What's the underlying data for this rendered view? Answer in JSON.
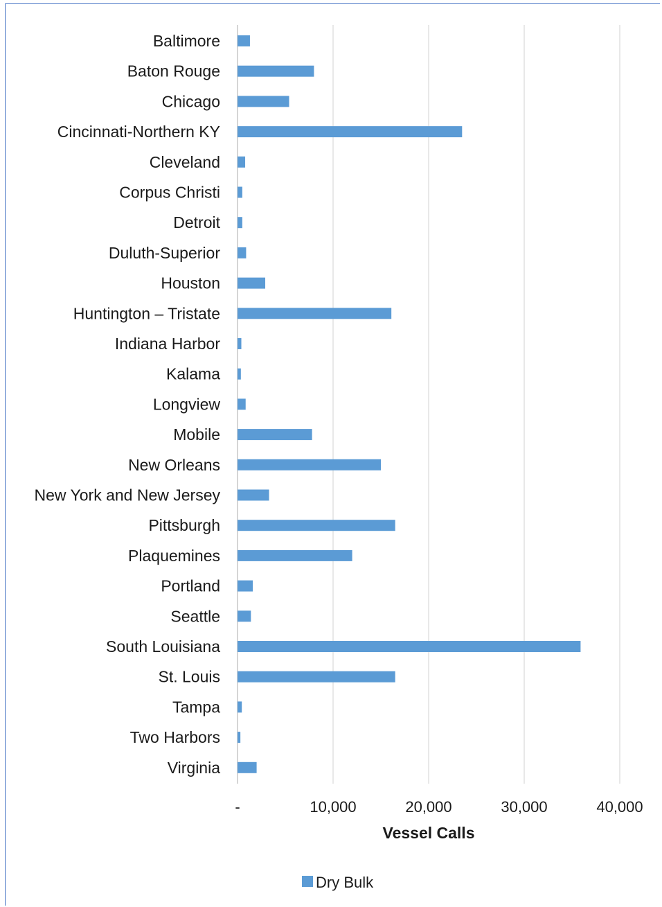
{
  "chart_data": {
    "type": "bar",
    "orientation": "horizontal",
    "categories": [
      "Baltimore",
      "Baton Rouge",
      "Chicago",
      "Cincinnati-Northern KY",
      "Cleveland",
      "Corpus Christi",
      "Detroit",
      "Duluth-Superior",
      "Houston",
      "Huntington – Tristate",
      "Indiana Harbor",
      "Kalama",
      "Longview",
      "Mobile",
      "New Orleans",
      "New York and New Jersey",
      "Pittsburgh",
      "Plaquemines",
      "Portland",
      "Seattle",
      "South Louisiana",
      "St. Louis",
      "Tampa",
      "Two Harbors",
      "Virginia"
    ],
    "series": [
      {
        "name": "Dry Bulk",
        "color": "#5b9bd5",
        "values": [
          1300,
          8000,
          5400,
          23500,
          800,
          500,
          500,
          900,
          2900,
          16100,
          400,
          350,
          850,
          7800,
          15000,
          3300,
          16500,
          12000,
          1600,
          1400,
          35900,
          16500,
          450,
          300,
          2000
        ]
      }
    ],
    "xlim": [
      0,
      40000
    ],
    "x_ticks": [
      0,
      10000,
      20000,
      30000,
      40000
    ],
    "x_tick_labels": [
      "-",
      "10,000",
      "20,000",
      "30,000",
      "40,000"
    ],
    "xlabel": "Vessel Calls",
    "ylabel": "",
    "title": "",
    "grid": "vertical",
    "legend_position": "bottom"
  }
}
